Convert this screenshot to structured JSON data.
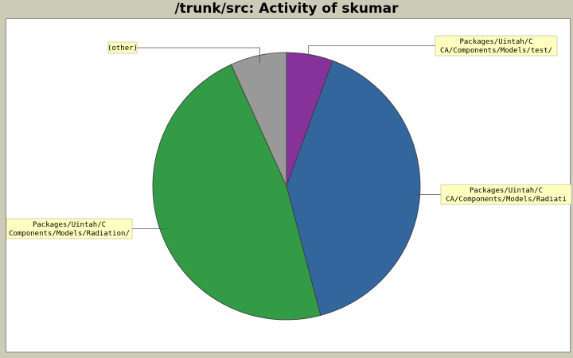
{
  "chart_data": {
    "type": "pie",
    "title": "/trunk/src: Activity of skumar",
    "slices": [
      {
        "label_lines": [
          "Packages/Uintah/C",
          "CA/Components/Models/test/"
        ],
        "value": 5.6,
        "color": "#86329a"
      },
      {
        "label_lines": [
          "Packages/Uintah/C",
          "CA/Components/Models/Radiati"
        ],
        "value": 40.3,
        "color": "#33669c"
      },
      {
        "label_lines": [
          "Packages/Uintah/C",
          "Components/Models/Radiation/"
        ],
        "value": 47.3,
        "color": "#339a45"
      },
      {
        "label_lines": [
          "(other)"
        ],
        "value": 6.8,
        "color": "#999999"
      }
    ]
  }
}
